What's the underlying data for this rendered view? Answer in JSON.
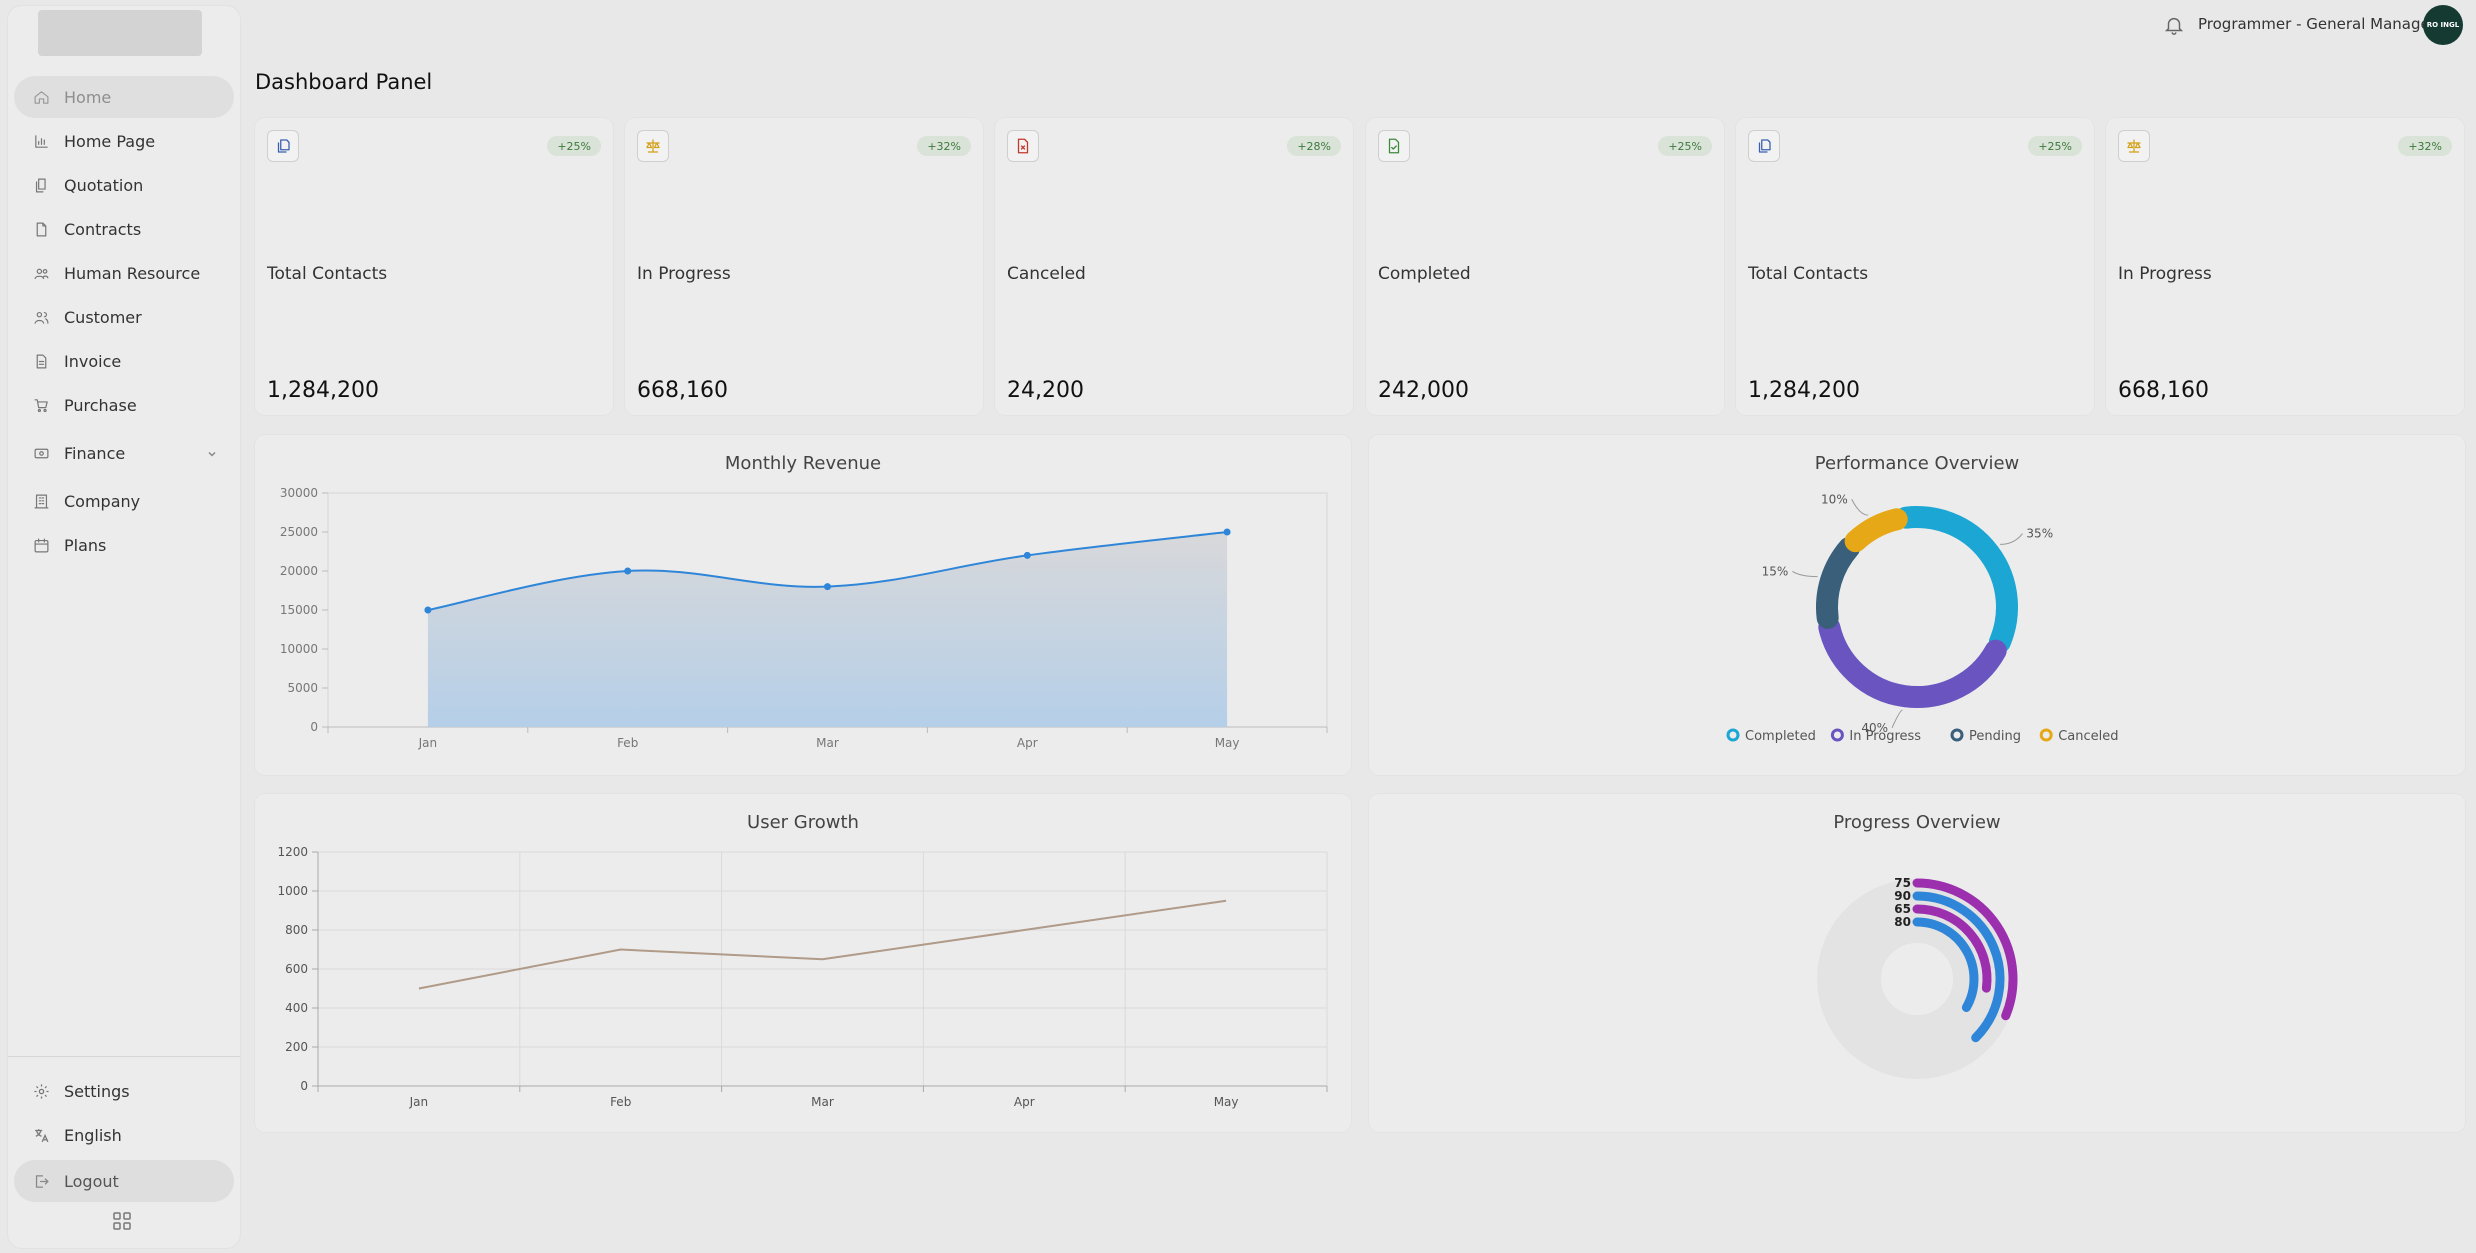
{
  "header": {
    "user_role": "Programmer - General Manager",
    "avatar_text": "RO INGL"
  },
  "sidebar": {
    "items": [
      {
        "label": "Home",
        "icon": "home-icon",
        "active": true
      },
      {
        "label": "Home Page",
        "icon": "chart-icon"
      },
      {
        "label": "Quotation",
        "icon": "documents-icon"
      },
      {
        "label": "Contracts",
        "icon": "file-icon"
      },
      {
        "label": "Human Resource",
        "icon": "users-icon"
      },
      {
        "label": "Customer",
        "icon": "user-group-icon"
      },
      {
        "label": "Invoice",
        "icon": "invoice-icon"
      },
      {
        "label": "Purchase",
        "icon": "cart-icon"
      },
      {
        "label": "Finance",
        "icon": "money-icon",
        "has_dropdown": true
      },
      {
        "label": "Company",
        "icon": "building-icon"
      },
      {
        "label": "Plans",
        "icon": "calendar-icon"
      }
    ],
    "bottom": {
      "settings": "Settings",
      "language": "English",
      "logout": "Logout"
    }
  },
  "page": {
    "title": "Dashboard Panel"
  },
  "stats": [
    {
      "label": "Total Contacts",
      "value": "1,284,200",
      "badge": "+25%",
      "icon": "copy-icon",
      "icon_color": "#3a5fb0"
    },
    {
      "label": "In Progress",
      "value": "668,160",
      "badge": "+32%",
      "icon": "scale-icon",
      "icon_color": "#d4a017"
    },
    {
      "label": "Canceled",
      "value": "24,200",
      "badge": "+28%",
      "icon": "file-x-icon",
      "icon_color": "#c0392b"
    },
    {
      "label": "Completed",
      "value": "242,000",
      "badge": "+25%",
      "icon": "file-check-icon",
      "icon_color": "#3c8a3c"
    },
    {
      "label": "Total Contacts",
      "value": "1,284,200",
      "badge": "+25%",
      "icon": "copy-icon",
      "icon_color": "#3a5fb0"
    },
    {
      "label": "In Progress",
      "value": "668,160",
      "badge": "+32%",
      "icon": "scale-icon",
      "icon_color": "#d4a017"
    }
  ],
  "charts": {
    "revenue_title": "Monthly Revenue",
    "performance_title": "Performance Overview",
    "growth_title": "User Growth",
    "progress_title": "Progress Overview"
  },
  "chart_data": [
    {
      "type": "area",
      "title": "Monthly Revenue",
      "categories": [
        "Jan",
        "Feb",
        "Mar",
        "Apr",
        "May"
      ],
      "values": [
        15000,
        20000,
        18000,
        22000,
        25000
      ],
      "ylim": [
        0,
        30000
      ],
      "yticks": [
        0,
        5000,
        10000,
        15000,
        20000,
        25000,
        30000
      ],
      "color": "#2f86d8"
    },
    {
      "type": "pie",
      "title": "Performance Overview",
      "slices": [
        {
          "name": "Completed",
          "value": 35,
          "label": "35%",
          "color": "#1ba6d4"
        },
        {
          "name": "In Progress",
          "value": 40,
          "label": "40%",
          "color": "#6a55c0"
        },
        {
          "name": "Pending",
          "value": 15,
          "label": "15%",
          "color": "#3a5f7a"
        },
        {
          "name": "Canceled",
          "value": 10,
          "label": "10%",
          "color": "#e6a817"
        }
      ],
      "legend": "bottom"
    },
    {
      "type": "line",
      "title": "User Growth",
      "categories": [
        "Jan",
        "Feb",
        "Mar",
        "Apr",
        "May"
      ],
      "values": [
        500,
        700,
        650,
        800,
        950
      ],
      "ylim": [
        0,
        1200
      ],
      "yticks": [
        0,
        200,
        400,
        600,
        800,
        1000,
        1200
      ],
      "color": "#b09a88",
      "grid": true
    },
    {
      "type": "radial-bar",
      "title": "Progress Overview",
      "values": [
        75,
        90,
        65,
        80
      ],
      "labels": [
        "75",
        "90",
        "65",
        "80"
      ],
      "colors": [
        "#9b2fae",
        "#2f86d8",
        "#9b2fae",
        "#2f86d8"
      ]
    }
  ]
}
